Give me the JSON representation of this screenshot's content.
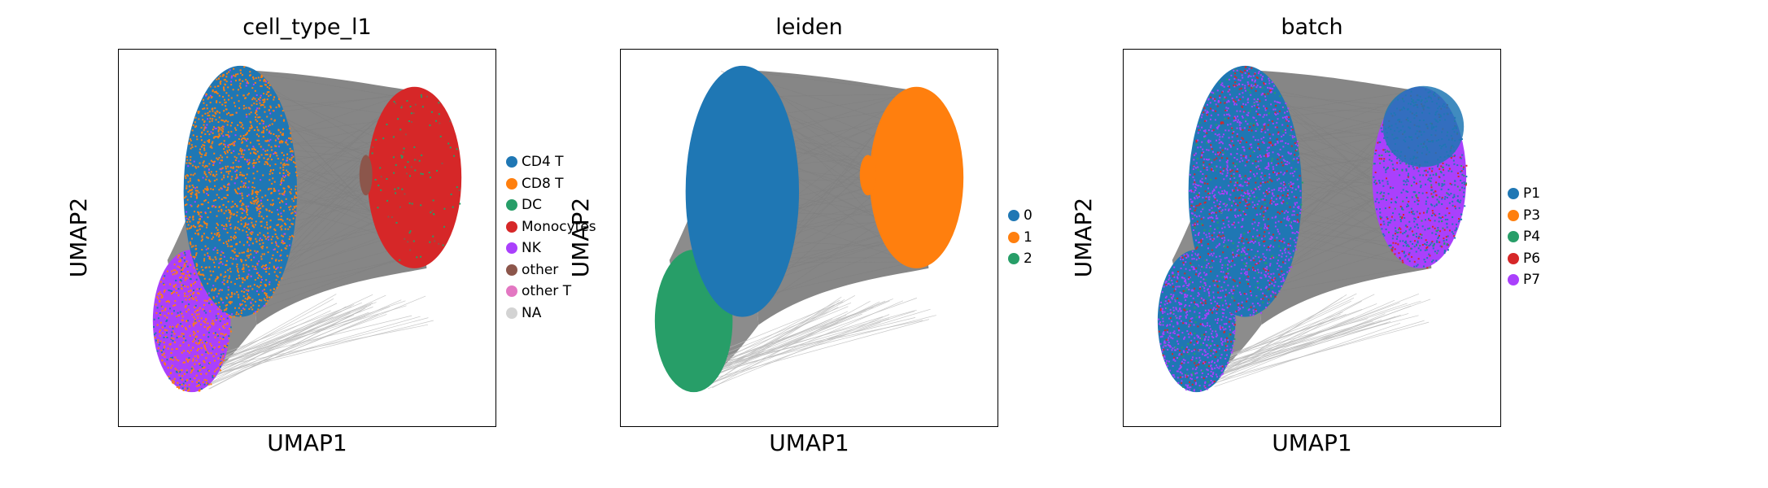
{
  "chart_data": [
    {
      "type": "scatter",
      "title": "cell_type_l1",
      "xlabel": "UMAP1",
      "ylabel": "UMAP2",
      "legend": [
        {
          "label": "CD4 T",
          "color": "#1f77b4"
        },
        {
          "label": "CD8 T",
          "color": "#ff7f0e"
        },
        {
          "label": "DC",
          "color": "#279e68"
        },
        {
          "label": "Monocytes",
          "color": "#d62728"
        },
        {
          "label": "NK",
          "color": "#aa40fc"
        },
        {
          "label": "other",
          "color": "#8c564b"
        },
        {
          "label": "other T",
          "color": "#e377c2"
        },
        {
          "label": "NA",
          "color": "#d3d3d3"
        }
      ],
      "legend_position": "right",
      "grid": false,
      "edges_color": "#7f7f7f"
    },
    {
      "type": "scatter",
      "title": "leiden",
      "xlabel": "UMAP1",
      "ylabel": "UMAP2",
      "legend": [
        {
          "label": "0",
          "color": "#1f77b4"
        },
        {
          "label": "1",
          "color": "#ff7f0e"
        },
        {
          "label": "2",
          "color": "#279e68"
        }
      ],
      "legend_position": "right",
      "grid": false,
      "edges_color": "#7f7f7f"
    },
    {
      "type": "scatter",
      "title": "batch",
      "xlabel": "UMAP1",
      "ylabel": "UMAP2",
      "legend": [
        {
          "label": "P1",
          "color": "#1f77b4"
        },
        {
          "label": "P3",
          "color": "#ff7f0e"
        },
        {
          "label": "P4",
          "color": "#279e68"
        },
        {
          "label": "P6",
          "color": "#d62728"
        },
        {
          "label": "P7",
          "color": "#aa40fc"
        }
      ],
      "legend_position": "right",
      "grid": false,
      "edges_color": "#7f7f7f"
    }
  ]
}
